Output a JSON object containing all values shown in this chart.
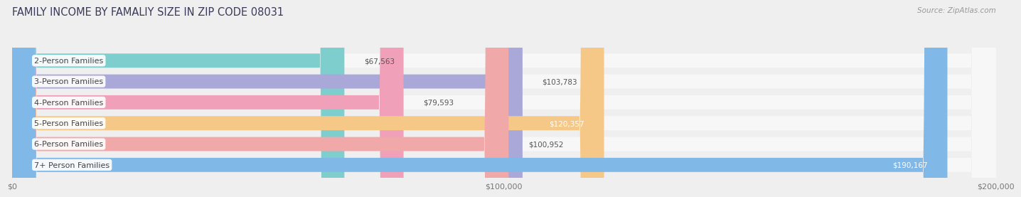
{
  "title": "FAMILY INCOME BY FAMALIY SIZE IN ZIP CODE 08031",
  "source": "Source: ZipAtlas.com",
  "categories": [
    "2-Person Families",
    "3-Person Families",
    "4-Person Families",
    "5-Person Families",
    "6-Person Families",
    "7+ Person Families"
  ],
  "values": [
    67563,
    103783,
    79593,
    120357,
    100952,
    190167
  ],
  "bar_colors": [
    "#7ecece",
    "#a9a8d8",
    "#f0a0b8",
    "#f5c888",
    "#f0a8a8",
    "#80b8e8"
  ],
  "inside_label": [
    false,
    false,
    false,
    true,
    false,
    true
  ],
  "xlim_max": 200000,
  "xtick_labels": [
    "$0",
    "$100,000",
    "$200,000"
  ],
  "background_color": "#efefef",
  "bar_background": "#f7f7f7",
  "title_fontsize": 10.5,
  "label_fontsize": 8.0,
  "value_fontsize": 7.5,
  "source_fontsize": 7.5
}
